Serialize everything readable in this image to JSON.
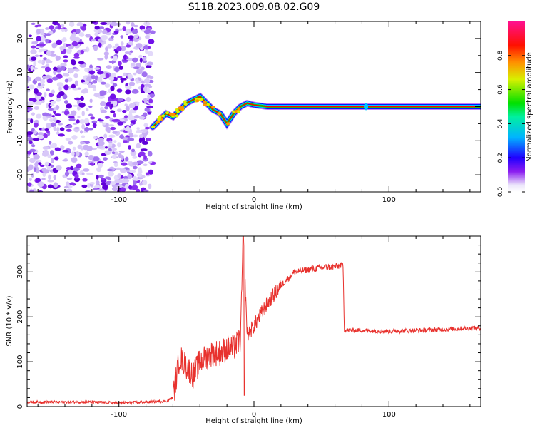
{
  "figure": {
    "title": "S118.2023.009.08.02.G09"
  },
  "chart_data": [
    {
      "type": "heatmap",
      "xlabel": "Height of straight line (km)",
      "ylabel": "Frequency (Hz)",
      "xlim": [
        -168,
        168
      ],
      "ylim": [
        -25,
        25
      ],
      "xticks": [
        -100,
        0,
        100
      ],
      "yticks": [
        -20,
        -10,
        0,
        10,
        20
      ],
      "colorbar": {
        "label": "Normalized spectral amplitude",
        "range": [
          0.0,
          1.0
        ],
        "ticks": [
          "0.0",
          "0.2",
          "0.4",
          "0.6",
          "0.8"
        ],
        "colormap": [
          "#e9e2f8",
          "#7b00f0",
          "#0018ff",
          "#00c8ff",
          "#00e000",
          "#d8f000",
          "#ff8000",
          "#ff0000",
          "#ff0090"
        ]
      },
      "description_trace": [
        [
          -75,
          -6
        ],
        [
          -70,
          -4
        ],
        [
          -65,
          -2
        ],
        [
          -60,
          -3
        ],
        [
          -55,
          -1
        ],
        [
          -50,
          1
        ],
        [
          -45,
          2
        ],
        [
          -40,
          3
        ],
        [
          -35,
          1
        ],
        [
          -30,
          -1
        ],
        [
          -25,
          -2
        ],
        [
          -20,
          -5
        ],
        [
          -15,
          -2
        ],
        [
          -10,
          0
        ],
        [
          -5,
          1
        ],
        [
          0,
          0.5
        ],
        [
          10,
          0
        ],
        [
          20,
          0
        ],
        [
          168,
          0
        ]
      ],
      "noise_region": [
        -168,
        -75
      ]
    },
    {
      "type": "line",
      "xlabel": "Height of straight line (km)",
      "ylabel": "SNR (10 * v/v)",
      "xlim": [
        -168,
        168
      ],
      "ylim": [
        0,
        380
      ],
      "xticks": [
        -100,
        0,
        100
      ],
      "yticks": [
        0,
        100,
        200,
        300
      ],
      "series": [
        {
          "color": "#e8322e",
          "x": [
            -168,
            -150,
            -120,
            -100,
            -80,
            -65,
            -60,
            -55,
            -50,
            -45,
            -40,
            -35,
            -30,
            -25,
            -20,
            -15,
            -10,
            -8,
            -5,
            0,
            10,
            20,
            30,
            40,
            50,
            60,
            66,
            67,
            80,
            100,
            120,
            140,
            160,
            168
          ],
          "y": [
            10,
            10,
            10,
            8,
            10,
            12,
            20,
            110,
            90,
            70,
            100,
            110,
            120,
            120,
            130,
            130,
            150,
            380,
            160,
            180,
            230,
            270,
            300,
            305,
            310,
            312,
            315,
            170,
            170,
            168,
            170,
            172,
            175,
            175
          ]
        }
      ]
    }
  ]
}
